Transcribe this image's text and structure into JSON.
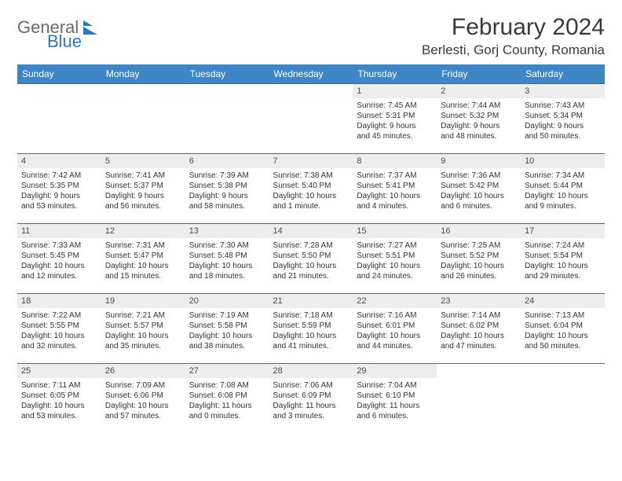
{
  "brand": {
    "word1": "General",
    "word2": "Blue"
  },
  "title": "February 2024",
  "location": "Berlesti, Gorj County, Romania",
  "colors": {
    "header_bg": "#3f86c7",
    "header_fg": "#ffffff",
    "row_divider": "#2f6fb0",
    "daynum_bg": "#ededed",
    "logo_blue": "#2f77c0",
    "logo_gray": "#6a6a6a"
  },
  "weekdays": [
    "Sunday",
    "Monday",
    "Tuesday",
    "Wednesday",
    "Thursday",
    "Friday",
    "Saturday"
  ],
  "weeks": [
    [
      {
        "empty": true
      },
      {
        "empty": true
      },
      {
        "empty": true
      },
      {
        "empty": true
      },
      {
        "n": "1",
        "sr": "Sunrise: 7:45 AM",
        "ss": "Sunset: 5:31 PM",
        "d1": "Daylight: 9 hours",
        "d2": "and 45 minutes."
      },
      {
        "n": "2",
        "sr": "Sunrise: 7:44 AM",
        "ss": "Sunset: 5:32 PM",
        "d1": "Daylight: 9 hours",
        "d2": "and 48 minutes."
      },
      {
        "n": "3",
        "sr": "Sunrise: 7:43 AM",
        "ss": "Sunset: 5:34 PM",
        "d1": "Daylight: 9 hours",
        "d2": "and 50 minutes."
      }
    ],
    [
      {
        "n": "4",
        "sr": "Sunrise: 7:42 AM",
        "ss": "Sunset: 5:35 PM",
        "d1": "Daylight: 9 hours",
        "d2": "and 53 minutes."
      },
      {
        "n": "5",
        "sr": "Sunrise: 7:41 AM",
        "ss": "Sunset: 5:37 PM",
        "d1": "Daylight: 9 hours",
        "d2": "and 56 minutes."
      },
      {
        "n": "6",
        "sr": "Sunrise: 7:39 AM",
        "ss": "Sunset: 5:38 PM",
        "d1": "Daylight: 9 hours",
        "d2": "and 58 minutes."
      },
      {
        "n": "7",
        "sr": "Sunrise: 7:38 AM",
        "ss": "Sunset: 5:40 PM",
        "d1": "Daylight: 10 hours",
        "d2": "and 1 minute."
      },
      {
        "n": "8",
        "sr": "Sunrise: 7:37 AM",
        "ss": "Sunset: 5:41 PM",
        "d1": "Daylight: 10 hours",
        "d2": "and 4 minutes."
      },
      {
        "n": "9",
        "sr": "Sunrise: 7:36 AM",
        "ss": "Sunset: 5:42 PM",
        "d1": "Daylight: 10 hours",
        "d2": "and 6 minutes."
      },
      {
        "n": "10",
        "sr": "Sunrise: 7:34 AM",
        "ss": "Sunset: 5:44 PM",
        "d1": "Daylight: 10 hours",
        "d2": "and 9 minutes."
      }
    ],
    [
      {
        "n": "11",
        "sr": "Sunrise: 7:33 AM",
        "ss": "Sunset: 5:45 PM",
        "d1": "Daylight: 10 hours",
        "d2": "and 12 minutes."
      },
      {
        "n": "12",
        "sr": "Sunrise: 7:31 AM",
        "ss": "Sunset: 5:47 PM",
        "d1": "Daylight: 10 hours",
        "d2": "and 15 minutes."
      },
      {
        "n": "13",
        "sr": "Sunrise: 7:30 AM",
        "ss": "Sunset: 5:48 PM",
        "d1": "Daylight: 10 hours",
        "d2": "and 18 minutes."
      },
      {
        "n": "14",
        "sr": "Sunrise: 7:28 AM",
        "ss": "Sunset: 5:50 PM",
        "d1": "Daylight: 10 hours",
        "d2": "and 21 minutes."
      },
      {
        "n": "15",
        "sr": "Sunrise: 7:27 AM",
        "ss": "Sunset: 5:51 PM",
        "d1": "Daylight: 10 hours",
        "d2": "and 24 minutes."
      },
      {
        "n": "16",
        "sr": "Sunrise: 7:25 AM",
        "ss": "Sunset: 5:52 PM",
        "d1": "Daylight: 10 hours",
        "d2": "and 26 minutes."
      },
      {
        "n": "17",
        "sr": "Sunrise: 7:24 AM",
        "ss": "Sunset: 5:54 PM",
        "d1": "Daylight: 10 hours",
        "d2": "and 29 minutes."
      }
    ],
    [
      {
        "n": "18",
        "sr": "Sunrise: 7:22 AM",
        "ss": "Sunset: 5:55 PM",
        "d1": "Daylight: 10 hours",
        "d2": "and 32 minutes."
      },
      {
        "n": "19",
        "sr": "Sunrise: 7:21 AM",
        "ss": "Sunset: 5:57 PM",
        "d1": "Daylight: 10 hours",
        "d2": "and 35 minutes."
      },
      {
        "n": "20",
        "sr": "Sunrise: 7:19 AM",
        "ss": "Sunset: 5:58 PM",
        "d1": "Daylight: 10 hours",
        "d2": "and 38 minutes."
      },
      {
        "n": "21",
        "sr": "Sunrise: 7:18 AM",
        "ss": "Sunset: 5:59 PM",
        "d1": "Daylight: 10 hours",
        "d2": "and 41 minutes."
      },
      {
        "n": "22",
        "sr": "Sunrise: 7:16 AM",
        "ss": "Sunset: 6:01 PM",
        "d1": "Daylight: 10 hours",
        "d2": "and 44 minutes."
      },
      {
        "n": "23",
        "sr": "Sunrise: 7:14 AM",
        "ss": "Sunset: 6:02 PM",
        "d1": "Daylight: 10 hours",
        "d2": "and 47 minutes."
      },
      {
        "n": "24",
        "sr": "Sunrise: 7:13 AM",
        "ss": "Sunset: 6:04 PM",
        "d1": "Daylight: 10 hours",
        "d2": "and 50 minutes."
      }
    ],
    [
      {
        "n": "25",
        "sr": "Sunrise: 7:11 AM",
        "ss": "Sunset: 6:05 PM",
        "d1": "Daylight: 10 hours",
        "d2": "and 53 minutes."
      },
      {
        "n": "26",
        "sr": "Sunrise: 7:09 AM",
        "ss": "Sunset: 6:06 PM",
        "d1": "Daylight: 10 hours",
        "d2": "and 57 minutes."
      },
      {
        "n": "27",
        "sr": "Sunrise: 7:08 AM",
        "ss": "Sunset: 6:08 PM",
        "d1": "Daylight: 11 hours",
        "d2": "and 0 minutes."
      },
      {
        "n": "28",
        "sr": "Sunrise: 7:06 AM",
        "ss": "Sunset: 6:09 PM",
        "d1": "Daylight: 11 hours",
        "d2": "and 3 minutes."
      },
      {
        "n": "29",
        "sr": "Sunrise: 7:04 AM",
        "ss": "Sunset: 6:10 PM",
        "d1": "Daylight: 11 hours",
        "d2": "and 6 minutes."
      },
      {
        "empty": true
      },
      {
        "empty": true
      }
    ]
  ]
}
